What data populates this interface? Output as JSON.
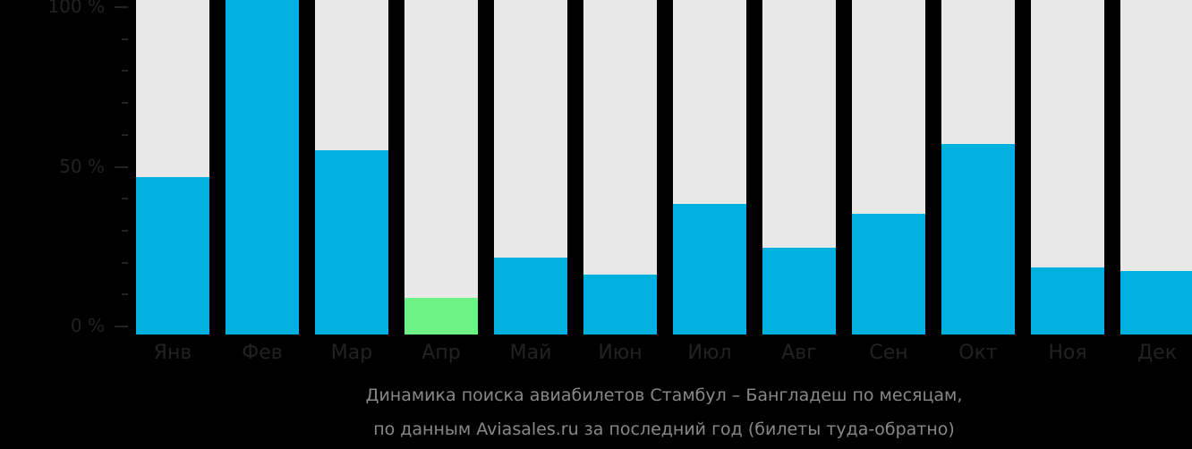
{
  "colors": {
    "background": "#000000",
    "track": "#e8e8e8",
    "bar": "#00b0dd",
    "highlight": "#6cf284",
    "text": "#222222",
    "caption": "#888888"
  },
  "chart_data": {
    "type": "bar",
    "title": "Динамика поиска авиабилетов Стамбул – Бангладеш по месяцам, по данным Aviasales.ru за последний год (билеты туда-обратно)",
    "categories": [
      "Янв",
      "Фев",
      "Мар",
      "Апр",
      "Май",
      "Июн",
      "Июл",
      "Авг",
      "Сен",
      "Окт",
      "Ноя",
      "Дек"
    ],
    "values": [
      47,
      100,
      55,
      11,
      23,
      18,
      39,
      26,
      36,
      57,
      20,
      19
    ],
    "highlight_index": 3,
    "ylim": [
      0,
      100
    ],
    "yticks": [
      "0 %",
      "50 %",
      "100 %"
    ],
    "xlabel": "",
    "ylabel": "",
    "grid": false,
    "legend": null
  },
  "caption": {
    "line1": "Динамика поиска авиабилетов Стамбул – Бангладеш по месяцам,",
    "line2": "по данным Aviasales.ru за последний год (билеты туда-обратно)"
  }
}
